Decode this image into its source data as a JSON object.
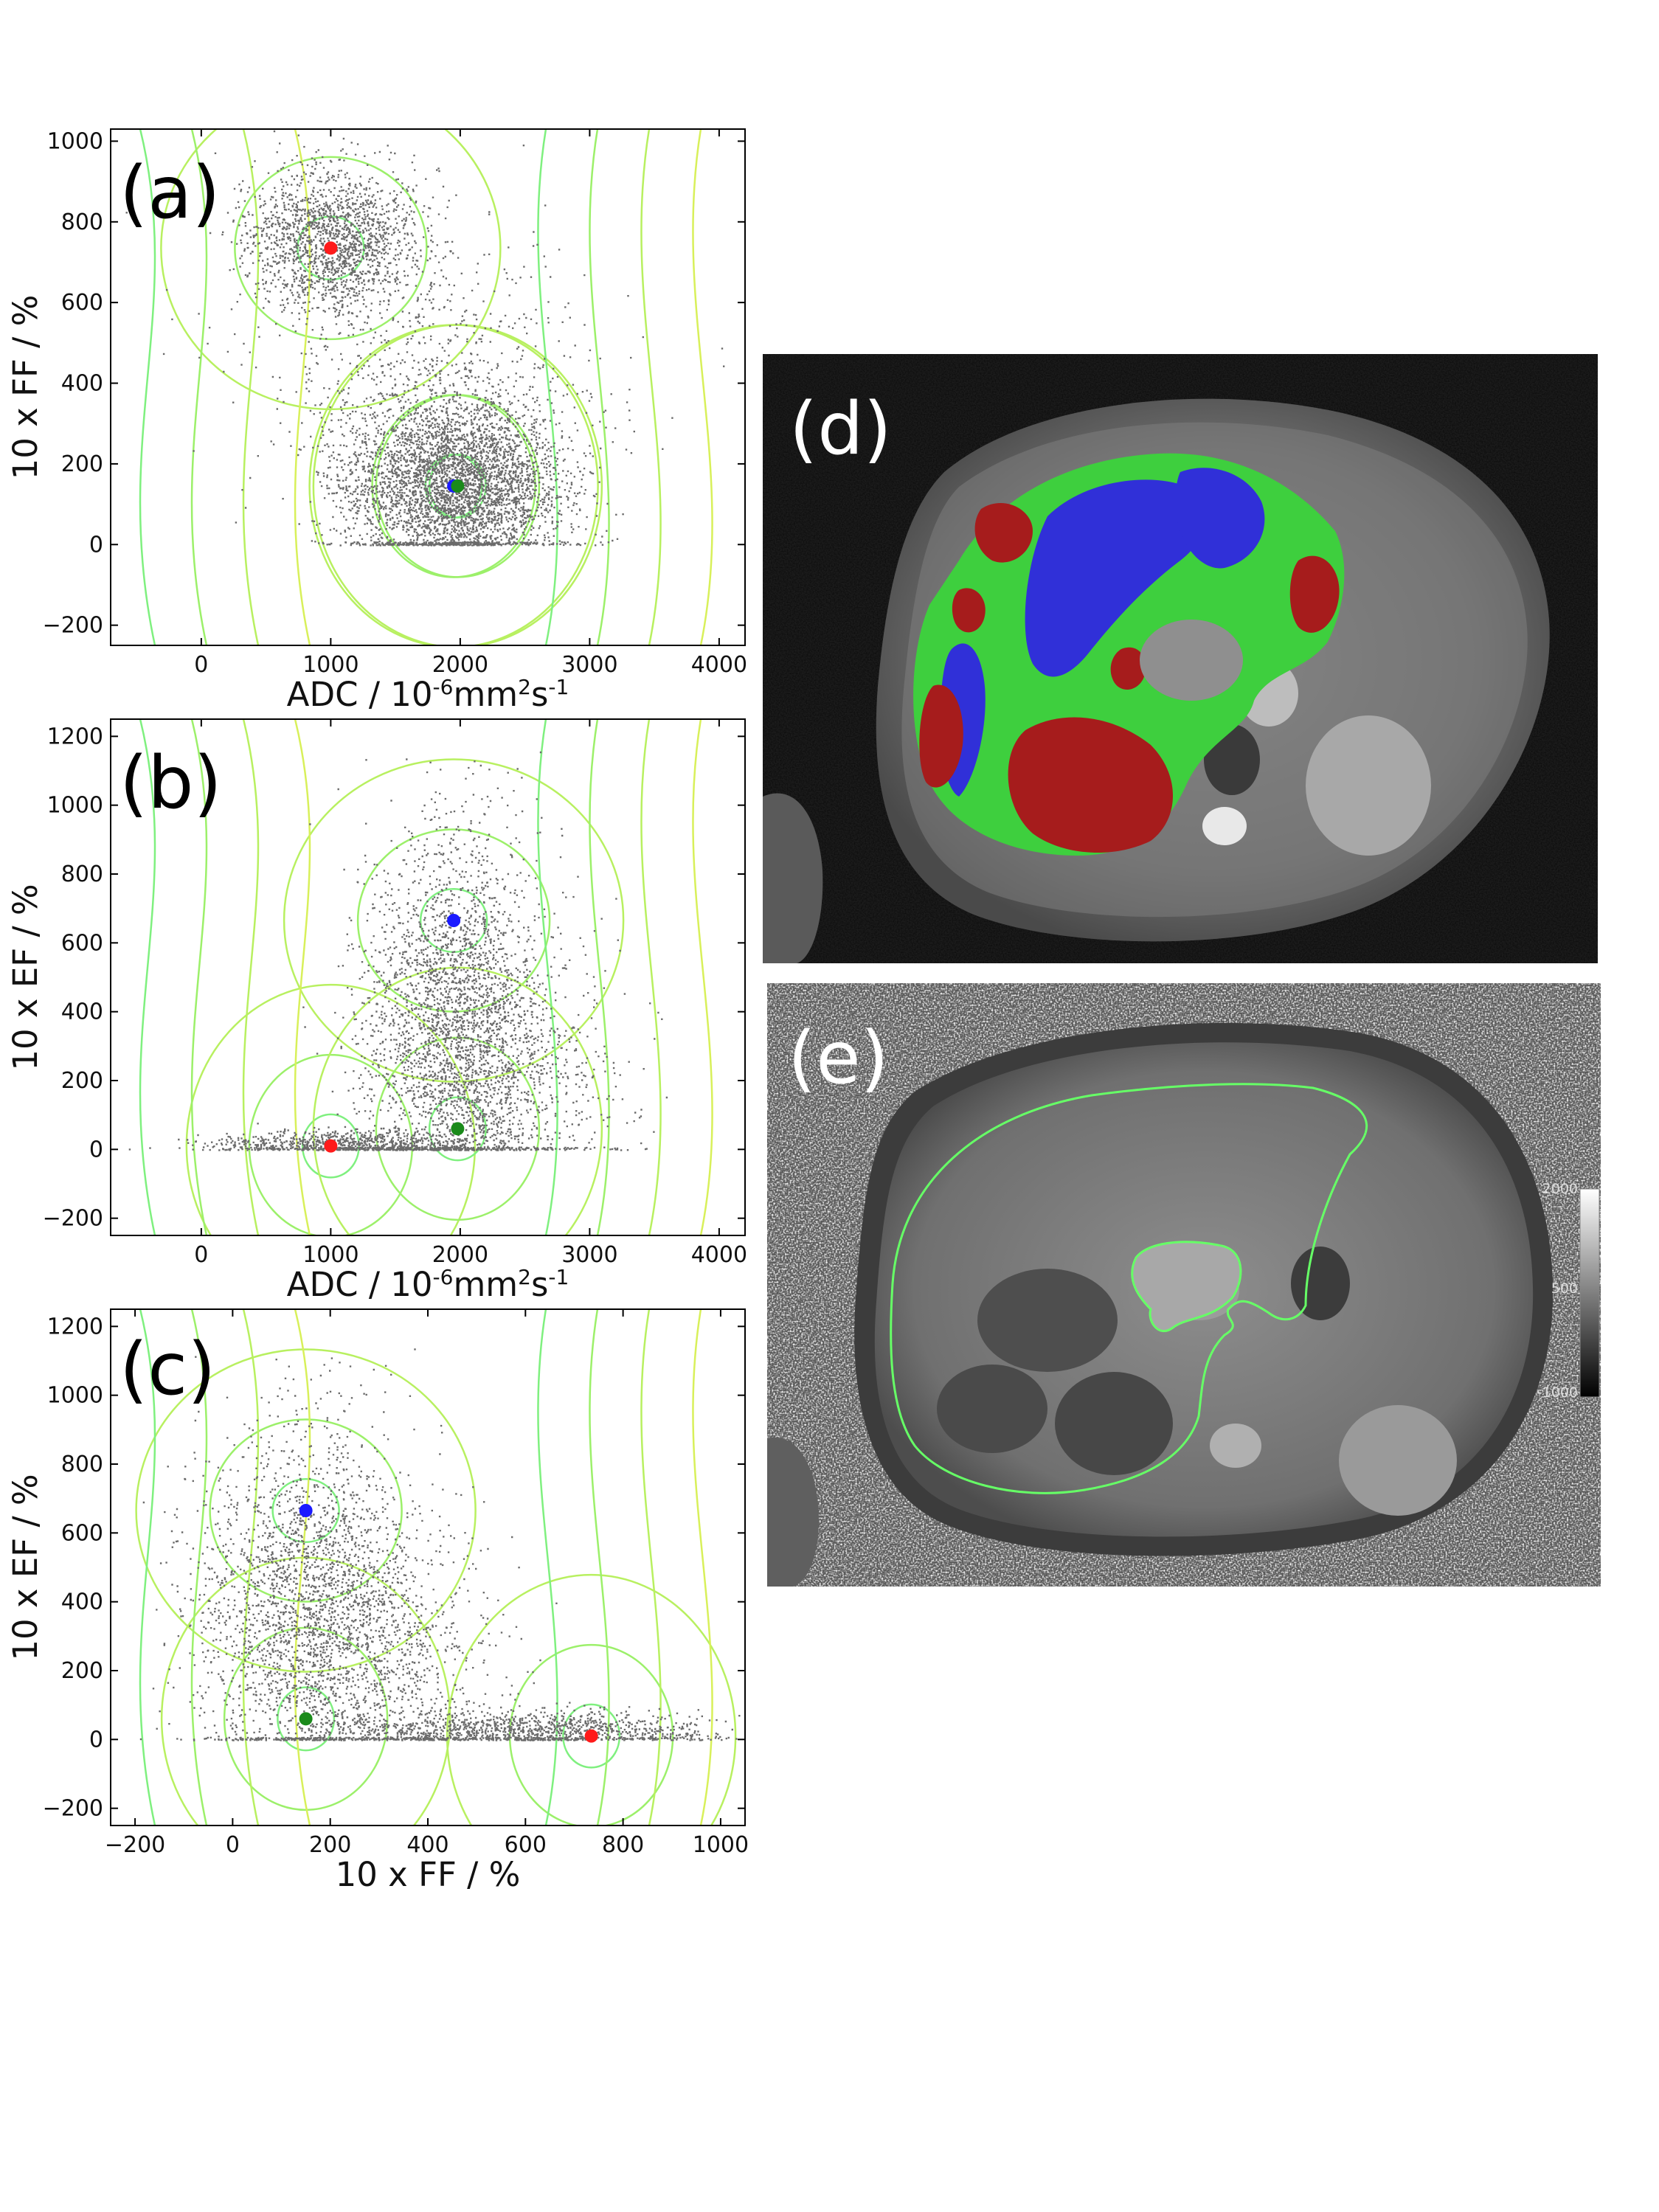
{
  "figure": {
    "panel_letters": [
      "(a)",
      "(b)",
      "(c)",
      "(d)",
      "(e)"
    ]
  },
  "colors": {
    "scatter": "#6b6b6b",
    "contour_inner": "#7ff07f",
    "contour_outer": "#d8f05a",
    "cluster_red": "#ff1a1a",
    "cluster_blue": "#1a1aff",
    "cluster_green": "#1a8a1a",
    "seg_red": "#a61c1c",
    "seg_green": "#3ecf3e",
    "seg_blue": "#3030d8",
    "outline_green": "#66ff66"
  },
  "chart_data": [
    {
      "id": "a",
      "type": "scatter",
      "label": "(a)",
      "xlabel_main": "ADC / 10",
      "xlabel_sup1": "-6",
      "xlabel_mid": "mm",
      "xlabel_sup2": "2",
      "xlabel_end": "s",
      "xlabel_sup3": "-1",
      "ylabel": "10 x FF / %",
      "xlim": [
        -700,
        4200
      ],
      "ylim": [
        -250,
        1030
      ],
      "xticks": [
        0,
        1000,
        2000,
        3000,
        4000
      ],
      "yticks": [
        -200,
        0,
        200,
        400,
        600,
        800,
        1000
      ],
      "xtick_labels": [
        "0",
        "1000",
        "2000",
        "3000",
        "4000"
      ],
      "ytick_labels": [
        "−200",
        "0",
        "200",
        "400",
        "600",
        "800",
        "1000"
      ],
      "grid": false,
      "clouds": [
        {
          "cx": 1950,
          "cy": 150,
          "sx": 420,
          "sy": 110,
          "n": 5200,
          "ymin": 0
        },
        {
          "cx": 1000,
          "cy": 760,
          "sx": 330,
          "sy": 85,
          "n": 1800,
          "ymin": 0
        },
        {
          "cx": 1700,
          "cy": 430,
          "sx": 650,
          "sy": 170,
          "n": 700,
          "ymin": 0
        }
      ],
      "cluster_centers": [
        {
          "x": 1000,
          "y": 735,
          "color": "red"
        },
        {
          "x": 1950,
          "y": 145,
          "color": "blue"
        },
        {
          "x": 1980,
          "y": 145,
          "color": "green"
        }
      ]
    },
    {
      "id": "b",
      "type": "scatter",
      "label": "(b)",
      "xlabel_main": "ADC / 10",
      "xlabel_sup1": "-6",
      "xlabel_mid": "mm",
      "xlabel_sup2": "2",
      "xlabel_end": "s",
      "xlabel_sup3": "-1",
      "ylabel": "10 x EF / %",
      "xlim": [
        -700,
        4200
      ],
      "ylim": [
        -250,
        1250
      ],
      "xticks": [
        0,
        1000,
        2000,
        3000,
        4000
      ],
      "yticks": [
        -200,
        0,
        200,
        400,
        600,
        800,
        1000,
        1200
      ],
      "xtick_labels": [
        "0",
        "1000",
        "2000",
        "3000",
        "4000"
      ],
      "ytick_labels": [
        "−200",
        "0",
        "200",
        "400",
        "600",
        "800",
        "1000",
        "1200"
      ],
      "grid": false,
      "clouds": [
        {
          "cx": 1950,
          "cy": 400,
          "sx": 330,
          "sy": 260,
          "n": 6000,
          "ymin": 0
        },
        {
          "cx": 1100,
          "cy": 15,
          "sx": 500,
          "sy": 20,
          "n": 900,
          "ymin": 0
        },
        {
          "cx": 2300,
          "cy": 200,
          "sx": 500,
          "sy": 180,
          "n": 900,
          "ymin": 0
        }
      ],
      "cluster_centers": [
        {
          "x": 1950,
          "y": 665,
          "color": "blue"
        },
        {
          "x": 1000,
          "y": 10,
          "color": "red"
        },
        {
          "x": 1980,
          "y": 60,
          "color": "green"
        }
      ]
    },
    {
      "id": "c",
      "type": "scatter",
      "label": "(c)",
      "xlabel_main": "10 x FF / %",
      "ylabel": "10 x EF / %",
      "xlim": [
        -250,
        1050
      ],
      "ylim": [
        -250,
        1250
      ],
      "xticks": [
        -200,
        0,
        200,
        400,
        600,
        800,
        1000
      ],
      "yticks": [
        -200,
        0,
        200,
        400,
        600,
        800,
        1000,
        1200
      ],
      "xtick_labels": [
        "−200",
        "0",
        "200",
        "400",
        "600",
        "800",
        "1000"
      ],
      "ytick_labels": [
        "−200",
        "0",
        "200",
        "400",
        "600",
        "800",
        "1000",
        "1200"
      ],
      "grid": false,
      "clouds": [
        {
          "cx": 150,
          "cy": 380,
          "sx": 110,
          "sy": 260,
          "n": 6000,
          "ymin": 0
        },
        {
          "cx": 600,
          "cy": 25,
          "sx": 190,
          "sy": 30,
          "n": 1300,
          "ymin": 0
        },
        {
          "cx": 330,
          "cy": 250,
          "sx": 110,
          "sy": 200,
          "n": 700,
          "ymin": 0
        }
      ],
      "cluster_centers": [
        {
          "x": 150,
          "y": 665,
          "color": "blue"
        },
        {
          "x": 150,
          "y": 60,
          "color": "green"
        },
        {
          "x": 735,
          "y": 10,
          "color": "red"
        }
      ]
    }
  ],
  "images": {
    "d": {
      "label": "(d)"
    },
    "e": {
      "label": "(e)",
      "colorbar_ticks": [
        "2000",
        "500",
        "-1000"
      ]
    }
  }
}
